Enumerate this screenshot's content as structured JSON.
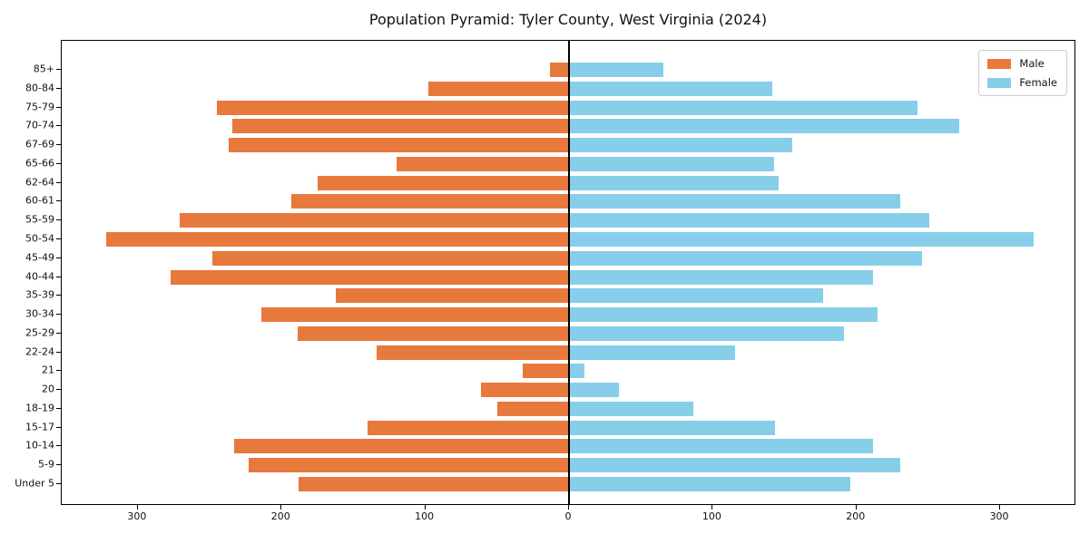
{
  "title": "Population Pyramid: Tyler County, West Virginia (2024)",
  "legend": {
    "male_label": "Male",
    "female_label": "Female"
  },
  "colors": {
    "male": "#E8793C",
    "female": "#87CEEB",
    "axis": "#000000",
    "zero_line": "#000000",
    "background": "#FFFFFF"
  },
  "chart_data": {
    "type": "bar",
    "subtype": "population-pyramid",
    "title": "Population Pyramid: Tyler County, West Virginia (2024)",
    "xlabel": "",
    "ylabel": "",
    "grid": false,
    "legend_position": "upper right",
    "zero_line": true,
    "categories_top_to_bottom": [
      "85+",
      "80-84",
      "75-79",
      "70-74",
      "67-69",
      "65-66",
      "62-64",
      "60-61",
      "55-59",
      "50-54",
      "45-49",
      "40-44",
      "35-39",
      "30-34",
      "25-29",
      "22-24",
      "21",
      "20",
      "18-19",
      "15-17",
      "10-14",
      "5-9",
      "Under 5"
    ],
    "series": [
      {
        "name": "Male",
        "side": "left",
        "color": "#E8793C",
        "values": [
          13,
          98,
          245,
          234,
          237,
          120,
          175,
          193,
          271,
          322,
          248,
          277,
          162,
          214,
          189,
          134,
          32,
          61,
          50,
          140,
          233,
          223,
          188
        ]
      },
      {
        "name": "Female",
        "side": "right",
        "color": "#87CEEB",
        "values": [
          65,
          141,
          242,
          271,
          155,
          142,
          145,
          230,
          250,
          323,
          245,
          211,
          176,
          214,
          191,
          115,
          10,
          34,
          86,
          143,
          211,
          230,
          195
        ]
      }
    ],
    "x_axis": {
      "xlim": [
        -353,
        353
      ],
      "tick_values": [
        -300,
        -200,
        -100,
        0,
        100,
        200,
        300
      ],
      "tick_labels": [
        "300",
        "200",
        "100",
        "0",
        "100",
        "200",
        "300"
      ]
    }
  }
}
